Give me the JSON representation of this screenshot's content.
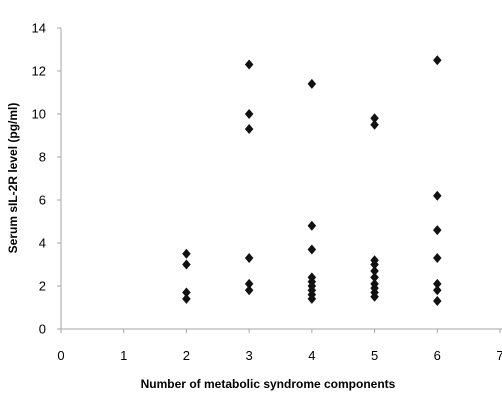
{
  "chart_data": {
    "type": "scatter",
    "xlabel": "Number of metabolic syndrome components",
    "ylabel": "Serum sIL-2R level (pg/ml)",
    "xlim": [
      0,
      7
    ],
    "ylim": [
      0,
      14
    ],
    "xticks": [
      "0",
      "1",
      "2",
      "3",
      "4",
      "5",
      "6",
      "7"
    ],
    "yticks": [
      "0",
      "2",
      "4",
      "6",
      "8",
      "10",
      "12",
      "14"
    ],
    "grid": false,
    "marker": "diamond",
    "marker_color": "#111111",
    "series": [
      {
        "points": [
          {
            "x": 2,
            "y": 3.5
          },
          {
            "x": 2,
            "y": 3.0
          },
          {
            "x": 2,
            "y": 1.7
          },
          {
            "x": 2,
            "y": 1.4
          },
          {
            "x": 3,
            "y": 12.3
          },
          {
            "x": 3,
            "y": 10.0
          },
          {
            "x": 3,
            "y": 9.3
          },
          {
            "x": 3,
            "y": 3.3
          },
          {
            "x": 3,
            "y": 2.1
          },
          {
            "x": 3,
            "y": 1.8
          },
          {
            "x": 4,
            "y": 11.4
          },
          {
            "x": 4,
            "y": 4.8
          },
          {
            "x": 4,
            "y": 3.7
          },
          {
            "x": 4,
            "y": 2.4
          },
          {
            "x": 4,
            "y": 2.2
          },
          {
            "x": 4,
            "y": 2.0
          },
          {
            "x": 4,
            "y": 1.8
          },
          {
            "x": 4,
            "y": 1.6
          },
          {
            "x": 4,
            "y": 1.4
          },
          {
            "x": 5,
            "y": 9.8
          },
          {
            "x": 5,
            "y": 9.5
          },
          {
            "x": 5,
            "y": 3.2
          },
          {
            "x": 5,
            "y": 3.0
          },
          {
            "x": 5,
            "y": 2.7
          },
          {
            "x": 5,
            "y": 2.4
          },
          {
            "x": 5,
            "y": 2.1
          },
          {
            "x": 5,
            "y": 1.9
          },
          {
            "x": 5,
            "y": 1.7
          },
          {
            "x": 5,
            "y": 1.5
          },
          {
            "x": 6,
            "y": 12.5
          },
          {
            "x": 6,
            "y": 6.2
          },
          {
            "x": 6,
            "y": 4.6
          },
          {
            "x": 6,
            "y": 3.3
          },
          {
            "x": 6,
            "y": 2.1
          },
          {
            "x": 6,
            "y": 1.8
          },
          {
            "x": 6,
            "y": 1.3
          }
        ]
      }
    ]
  }
}
